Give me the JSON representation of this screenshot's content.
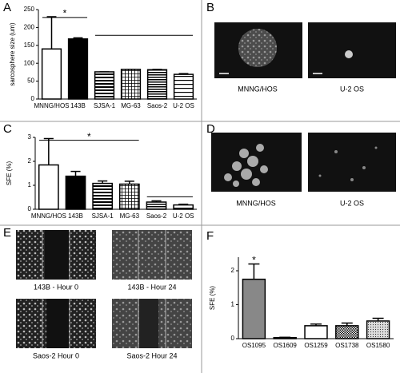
{
  "chart_data": [
    {
      "type": "bar",
      "label": "A",
      "ylabel": "sarcosphere size (um)",
      "annotation": "*",
      "categories": [
        "MNNG/HOS",
        "143B",
        "SJSA-1",
        "MG-63",
        "Saos-2",
        "U-2 OS"
      ],
      "values": [
        140,
        168,
        76,
        83,
        82,
        69
      ],
      "errors": [
        90,
        3,
        0,
        0,
        1,
        2
      ],
      "fills": [
        "white",
        "black",
        "hstripe",
        "grid",
        "hlines",
        "hlines2"
      ],
      "ylim": [
        0,
        250
      ],
      "yticks": [
        0,
        50,
        100,
        150,
        200,
        250
      ]
    },
    {
      "type": "bar",
      "label": "C",
      "ylabel": "SFE (%)",
      "annotation": "*",
      "categories": [
        "MNNG/HOS",
        "143B",
        "SJSA-1",
        "MG-63",
        "Saos-2",
        "U-2 OS"
      ],
      "values": [
        1.85,
        1.38,
        1.08,
        1.05,
        0.3,
        0.18
      ],
      "errors": [
        1.1,
        0.2,
        0.1,
        0.12,
        0.05,
        0.03
      ],
      "fills": [
        "white",
        "black",
        "hstripe",
        "grid",
        "hlines",
        "hlines2"
      ],
      "ylim": [
        0,
        3
      ],
      "yticks": [
        0,
        1,
        2,
        3
      ]
    },
    {
      "type": "bar",
      "label": "F",
      "ylabel": "SFE (%)",
      "annotation": "*",
      "categories": [
        "OS1095",
        "OS1609",
        "OS1259",
        "OS1738",
        "OS1580"
      ],
      "values": [
        1.75,
        0.03,
        0.38,
        0.38,
        0.52
      ],
      "errors": [
        0.45,
        0.01,
        0.05,
        0.08,
        0.08
      ],
      "fills": [
        "gray",
        "white",
        "white",
        "checker",
        "dots"
      ],
      "ylim": [
        0,
        2.4
      ],
      "yticks": [
        0,
        1,
        2
      ]
    }
  ],
  "image_panels": [
    {
      "label": "B",
      "captions": [
        "MNNG/HOS",
        "U-2 OS"
      ]
    },
    {
      "label": "D",
      "captions": [
        "MNNG/HOS",
        "U-2 OS"
      ]
    },
    {
      "label": "E",
      "captions": [
        "143B - Hour 0",
        "143B - Hour 24",
        "Saos-2 Hour 0",
        "Saos-2 Hour 24"
      ]
    }
  ]
}
